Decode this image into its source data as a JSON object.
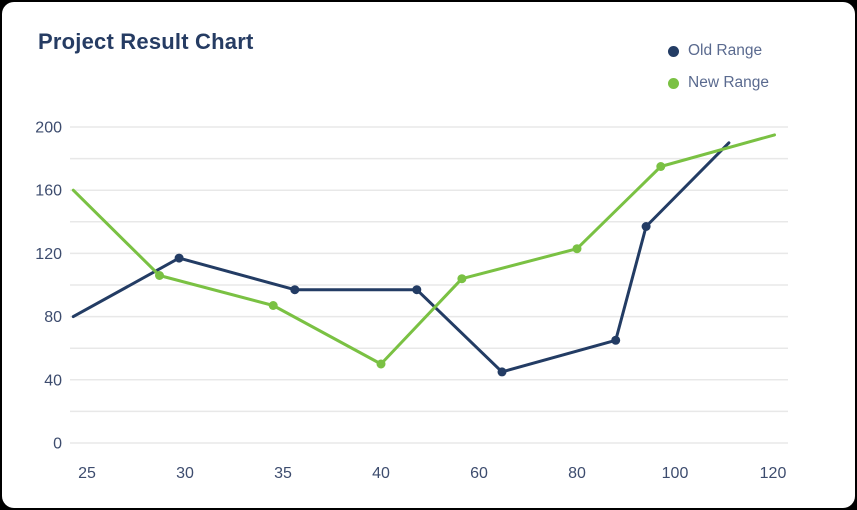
{
  "title": "Project Result Chart",
  "legend": {
    "items": [
      {
        "label": "Old Range",
        "color": "#233C64"
      },
      {
        "label": "New Range",
        "color": "#7AC143"
      }
    ]
  },
  "colors": {
    "card_background": "#FFFFFF",
    "frame": "#000000",
    "title_text": "#263C63",
    "legend_text": "#5A6A8F",
    "axis_label": "#3D4C6E",
    "gridline": "#E8E8E8",
    "old_range": "#233C64",
    "new_range": "#7AC143"
  },
  "chart_data": {
    "type": "line",
    "title": "Project Result Chart",
    "x_tick_labels": [
      25,
      30,
      35,
      40,
      60,
      80,
      100,
      120
    ],
    "x_tick_spacing": "even",
    "y_ticks": [
      0,
      40,
      80,
      120,
      160,
      200
    ],
    "y_grid_step": 20,
    "ylim": [
      0,
      200
    ],
    "grid": "horizontal-only",
    "legend_position": "top-right",
    "marker_style": "filled-circle-on-interior-points",
    "series": [
      {
        "name": "Old Range",
        "color": "#233C64",
        "points": [
          [
            24.3,
            80
          ],
          [
            29.7,
            117
          ],
          [
            35.6,
            97
          ],
          [
            47.3,
            97
          ],
          [
            64.7,
            45
          ],
          [
            87.9,
            65
          ],
          [
            94.1,
            137
          ],
          [
            111,
            190
          ]
        ]
      },
      {
        "name": "New Range",
        "color": "#7AC143",
        "points": [
          [
            24.3,
            160
          ],
          [
            28.7,
            106
          ],
          [
            34.5,
            87
          ],
          [
            40,
            50
          ],
          [
            56.5,
            104
          ],
          [
            80,
            123
          ],
          [
            97.1,
            175
          ],
          [
            120.3,
            195
          ]
        ]
      }
    ]
  }
}
